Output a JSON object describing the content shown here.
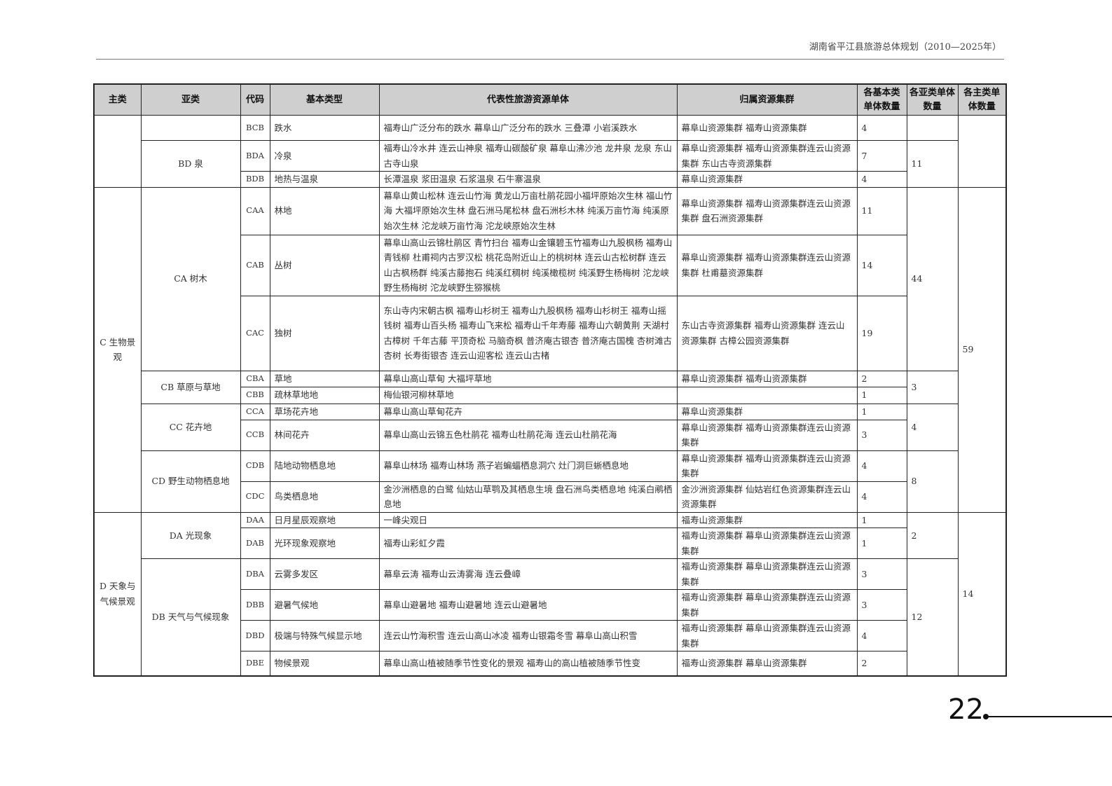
{
  "header": {
    "title": "湖南省平江县旅游总体规划（2010—2025年）"
  },
  "page_number": "22",
  "table": {
    "columns": [
      "主类",
      "亚类",
      "代码",
      "基本类型",
      "代表性旅游资源单体",
      "归属资源集群",
      "各基本类单体数量",
      "各亚类单体数量",
      "各主类单体数量"
    ],
    "main_groups": [
      {
        "label": "",
        "count": "",
        "sub_groups": [
          {
            "label": "",
            "count": "",
            "rows": [
              {
                "code": "BCB",
                "type": "跌水",
                "units": "福寿山广泛分布的跌水 幕阜山广泛分布的跌水 三叠潭 小岩溪跌水",
                "cluster": "幕阜山资源集群 福寿山资源集群",
                "count": "4",
                "h": 36
              }
            ]
          },
          {
            "label": "BD 泉",
            "count": "11",
            "rows": [
              {
                "code": "BDA",
                "type": "冷泉",
                "units": "福寿山冷水井 连云山神泉 福寿山碳酸矿泉 幕阜山沸沙池 龙井泉 龙泉 东山古寺山泉",
                "cluster": "幕阜山资源集群 福寿山资源集群连云山资源集群 东山古寺资源集群",
                "count": "7",
                "h": 43
              },
              {
                "code": "BDB",
                "type": "地热与温泉",
                "units": "长潭温泉 浆田温泉 石浆温泉 石牛寨温泉",
                "cluster": "幕阜山资源集群",
                "count": "4",
                "h": 21
              }
            ]
          }
        ]
      },
      {
        "label": "C 生物景观",
        "count": "59",
        "sub_groups": [
          {
            "label": "CA 树木",
            "count": "44",
            "rows": [
              {
                "code": "CAA",
                "type": "林地",
                "units": "幕阜山黄山松林 连云山竹海 黄龙山万亩杜鹃花园小福坪原始次生林 福山竹海 大福坪原始次生林 盘石洲马尾松林 盘石洲杉木林 纯溪万亩竹海 纯溪原始次生林 沱龙峡万亩竹海 沱龙峡原始次生林",
                "cluster": "幕阜山资源集群 福寿山资源集群连云山资源集群 盘石洲资源集群",
                "count": "11",
                "h": 68
              },
              {
                "code": "CAB",
                "type": "丛树",
                "units": "幕阜山高山云锦杜鹃区 青竹扫台 福寿山金镶碧玉竹福寿山九股枫杨 福寿山青钱柳 杜甫祠内古罗汉松 桃花岛附近山上的桃树林 连云山古松树群 连云山古枫杨群 纯溪古藤抱石 纯溪红稠树 纯溪橄榄树 纯溪野生杨梅树 沱龙峡野生杨梅树 沱龙峡野生猕猴桃",
                "cluster": "幕阜山资源集群 福寿山资源集群连云山资源集群 杜甫墓资源集群",
                "count": "14",
                "h": 87
              },
              {
                "code": "CAC",
                "type": "独树",
                "units": "东山寺内宋朝古枫 福寿山杉树王 福寿山九股枫杨 福寿山杉树王 福寿山摇钱树 福寿山百头杨 福寿山飞来松 福寿山千年寿藤 福寿山六朝黄荆 天湖村古樟树 千年古藤 平顶奇松 马脑奇枫 普济庵古银杏 普济庵古国槐 杏树滩古杏树 长寿街银杏 连云山迎客松 连云山古楮",
                "cluster": "东山古寺资源集群 福寿山资源集群 连云山资源集群 古樟公园资源集群",
                "count": "19",
                "h": 107
              }
            ]
          },
          {
            "label": "CB 草原与草地",
            "count": "3",
            "rows": [
              {
                "code": "CBA",
                "type": "草地",
                "units": "幕阜山高山草甸 大福坪草地",
                "cluster": "幕阜山资源集群 福寿山资源集群",
                "count": "2",
                "h": 23
              },
              {
                "code": "CBB",
                "type": "疏林草地地",
                "units": "梅仙银河柳林草地",
                "cluster": "",
                "count": "1",
                "h": 24
              }
            ]
          },
          {
            "label": "CC 花卉地",
            "count": "4",
            "rows": [
              {
                "code": "CCA",
                "type": "草场花卉地",
                "units": "幕阜山高山草甸花卉",
                "cluster": "幕阜山资源集群",
                "count": "1",
                "h": 23
              },
              {
                "code": "CCB",
                "type": "林间花卉",
                "units": "幕阜山高山云锦五色杜鹃花 福寿山杜鹃花海 连云山杜鹃花海",
                "cluster": "幕阜山资源集群 福寿山资源集群连云山资源集群",
                "count": "3",
                "h": 44
              }
            ]
          },
          {
            "label": "CD 野生动物栖息地",
            "count": "8",
            "rows": [
              {
                "code": "CDB",
                "type": "陆地动物栖息地",
                "units": "幕阜山林场 福寿山林场 燕子岩蝙蝠栖息洞穴 灶门洞巨蜥栖息地",
                "cluster": "幕阜山资源集群 福寿山资源集群连云山资源集群",
                "count": "4",
                "h": 43
              },
              {
                "code": "CDC",
                "type": "鸟类栖息地",
                "units": "金沙洲栖息的白鹭 仙姑山草鹗及其栖息生境 盘石洲鸟类栖息地 纯溪白鹇栖息地",
                "cluster": "金沙洲资源集群 仙姑岩红色资源集群连云山资源集群",
                "count": "4",
                "h": 44
              }
            ]
          }
        ]
      },
      {
        "label": "D 天象与气候景观",
        "count": "14",
        "sub_groups": [
          {
            "label": "DA 光现象",
            "count": "2",
            "rows": [
              {
                "code": "DAA",
                "type": "日月星辰观察地",
                "units": "一峰尖观日",
                "cluster": "福寿山资源集群",
                "count": "1",
                "h": 22
              },
              {
                "code": "DAB",
                "type": "光环现象观察地",
                "units": "福寿山彩虹夕霞",
                "cluster": "福寿山资源集群 幕阜山资源集群连云山资源集群",
                "count": "1",
                "h": 44
              }
            ]
          },
          {
            "label": "DB 天气与气候现象",
            "count": "12",
            "rows": [
              {
                "code": "DBA",
                "type": "云雾多发区",
                "units": "幕阜云涛 福寿山云涛雾海 连云叠嶂",
                "cluster": "福寿山资源集群 幕阜山资源集群连云山资源集群",
                "count": "3",
                "h": 43
              },
              {
                "code": "DBB",
                "type": "避暑气候地",
                "units": "幕阜山避暑地 福寿山避暑地 连云山避暑地",
                "cluster": "福寿山资源集群 幕阜山资源集群连云山资源集群",
                "count": "3",
                "h": 43
              },
              {
                "code": "DBD",
                "type": "极端与特殊气候显示地",
                "units": "连云山竹海积雪 连云山高山冰凌 福寿山银霜冬雪 幕阜山高山积雪",
                "cluster": "福寿山资源集群 幕阜山资源集群连云山资源集群",
                "count": "4",
                "h": 43
              },
              {
                "code": "DBE",
                "type": "物候景观",
                "units": "幕阜山高山植被随季节性变化的景观 福寿山的高山植被随季节性变",
                "cluster": "福寿山资源集群 幕阜山资源集群",
                "count": "2",
                "h": 35
              }
            ]
          }
        ]
      }
    ]
  }
}
